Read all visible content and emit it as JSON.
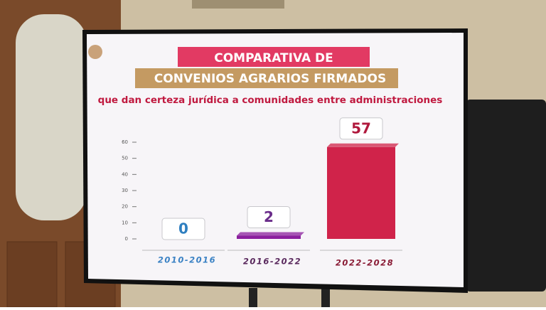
{
  "chart_data": {
    "type": "bar",
    "title": [
      "COMPARATIVA DE",
      "CONVENIOS AGRARIOS FIRMADOS"
    ],
    "subtitle": "que dan certeza jurídica a comunidades entre administraciones",
    "categories": [
      "2010-2016",
      "2016-2022",
      "2022-2028"
    ],
    "values": [
      0,
      2,
      57
    ],
    "colors": [
      "#8b1f9e",
      "#8b1f9e",
      "#d0234a"
    ],
    "category_colors": [
      "#3b82c4",
      "#5a2a5e",
      "#8a1c36"
    ],
    "ylim": [
      0,
      60
    ],
    "yticks": [
      0,
      10,
      20,
      30,
      40,
      50,
      60
    ]
  }
}
